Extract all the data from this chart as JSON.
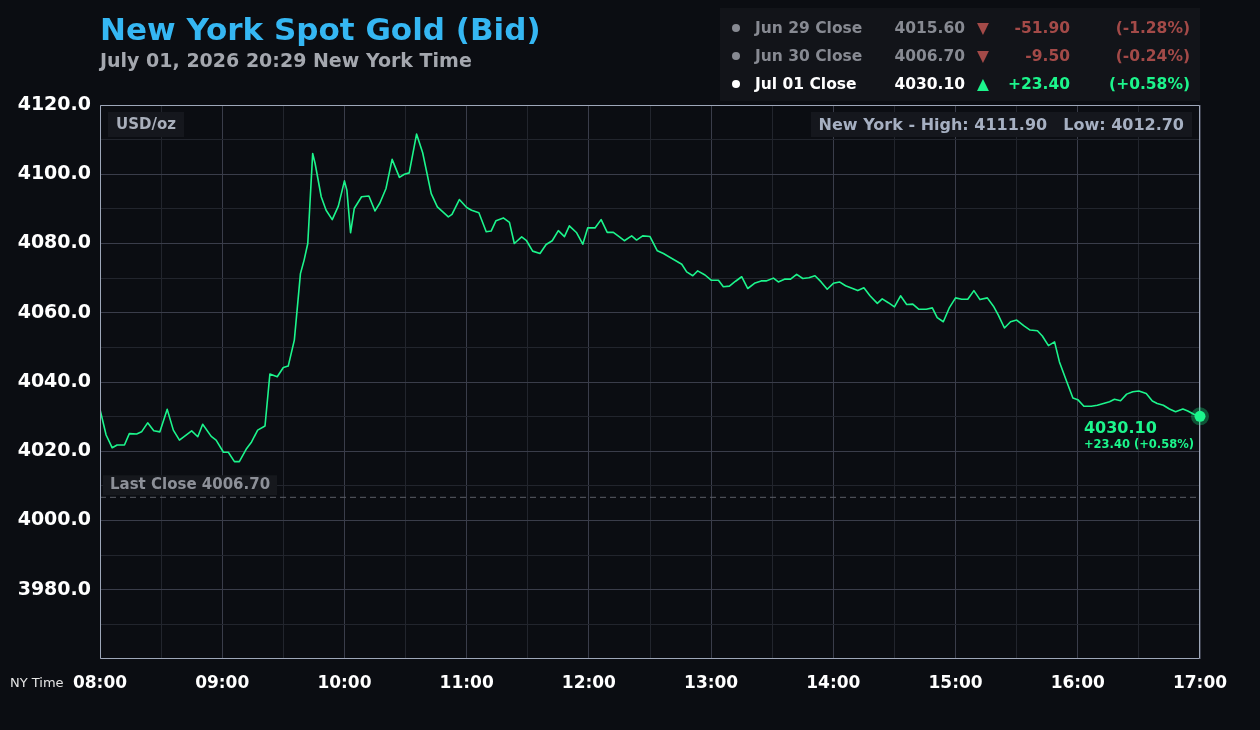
{
  "chart_data": {
    "type": "line",
    "title": "New York Spot Gold (Bid)",
    "subtitle": "July 01, 2026 20:29 New York Time",
    "xlabel": "NY Time",
    "ylabel": "USD/oz",
    "annotations": [
      "Jun 29 Close 4015.60 ▼ -51.90 (-1.28%)",
      "Jun 30 Close 4006.70 ▼ -9.50 (-0.24%)",
      "Jul 01 Close 4030.10 ▲ +23.40 (+0.58%)",
      "New York - High: 4111.90",
      "Low: 4012.70",
      {
        "text": "4030.10",
        "x": 17,
        "y": 4030.1
      },
      {
        "text": "+23.40 (+0.58%)",
        "x": 17,
        "y": 4030.1
      }
    ],
    "x": [
      8.0,
      8.05,
      8.1,
      8.14,
      8.2,
      8.24,
      8.3,
      8.34,
      8.39,
      8.44,
      8.49,
      8.55,
      8.6,
      8.65,
      8.75,
      8.8,
      8.84,
      8.91,
      8.95,
      9.01,
      9.05,
      9.1,
      9.14,
      9.2,
      9.24,
      9.29,
      9.35,
      9.39,
      9.45,
      9.5,
      9.54,
      9.59,
      9.64,
      9.67,
      9.7,
      9.74,
      9.76,
      9.81,
      9.85,
      9.9,
      9.95,
      10.0,
      10.02,
      10.05,
      10.08,
      10.14,
      10.2,
      10.25,
      10.29,
      10.34,
      10.39,
      10.45,
      10.49,
      10.53,
      10.59,
      10.64,
      10.71,
      10.76,
      10.85,
      10.88,
      10.94,
      11.0,
      11.04,
      11.1,
      11.16,
      11.2,
      11.24,
      11.3,
      11.35,
      11.39,
      11.45,
      11.49,
      11.54,
      11.6,
      11.65,
      11.7,
      11.75,
      11.8,
      11.84,
      11.9,
      11.95,
      11.99,
      12.05,
      12.1,
      12.15,
      12.2,
      12.25,
      12.29,
      12.35,
      12.39,
      12.44,
      12.5,
      12.56,
      12.61,
      12.76,
      12.8,
      12.85,
      12.89,
      12.95,
      13.0,
      13.06,
      13.1,
      13.15,
      13.2,
      13.25,
      13.3,
      13.36,
      13.41,
      13.45,
      13.51,
      13.55,
      13.6,
      13.65,
      13.7,
      13.75,
      13.8,
      13.85,
      13.9,
      13.95,
      14.0,
      14.05,
      14.1,
      14.2,
      14.25,
      14.3,
      14.36,
      14.4,
      14.45,
      14.5,
      14.55,
      14.6,
      14.65,
      14.7,
      14.76,
      14.81,
      14.85,
      14.9,
      14.95,
      15.0,
      15.05,
      15.1,
      15.15,
      15.2,
      15.26,
      15.31,
      15.35,
      15.4,
      15.45,
      15.5,
      15.56,
      15.61,
      15.67,
      15.71,
      15.76,
      15.81,
      15.85,
      15.9,
      15.96,
      16.0,
      16.05,
      16.11,
      16.16,
      16.21,
      16.26,
      16.3,
      16.35,
      16.4,
      16.45,
      16.5,
      16.56,
      16.61,
      16.65,
      16.7,
      16.75,
      16.8,
      16.86,
      16.9,
      16.95,
      17.0
    ],
    "values": [
      4032.1,
      4024.7,
      4021.0,
      4021.8,
      4021.8,
      4025.1,
      4025.0,
      4025.6,
      4028.2,
      4025.9,
      4025.6,
      4032.1,
      4026.1,
      4023.2,
      4025.9,
      4024.2,
      4027.8,
      4024.3,
      4023.2,
      4019.7,
      4019.7,
      4017.0,
      4017.0,
      4020.8,
      4022.7,
      4026.1,
      4027.3,
      4042.3,
      4041.5,
      4044.2,
      4044.6,
      4052.1,
      4071.3,
      4075.2,
      4080.0,
      4106.0,
      4103.1,
      4093.5,
      4089.6,
      4086.9,
      4090.8,
      4098.1,
      4095.4,
      4083.1,
      4090.1,
      4093.5,
      4093.7,
      4089.4,
      4091.7,
      4095.9,
      4104.3,
      4099.1,
      4100.0,
      4100.4,
      4111.6,
      4106.2,
      4094.4,
      4090.6,
      4087.7,
      4088.4,
      4092.7,
      4090.4,
      4089.6,
      4088.9,
      4083.4,
      4083.6,
      4086.6,
      4087.4,
      4086.1,
      4080.0,
      4081.9,
      4080.8,
      4077.8,
      4077.1,
      4079.7,
      4080.8,
      4083.7,
      4082.0,
      4085.1,
      4083.1,
      4079.8,
      4084.5,
      4084.5,
      4086.9,
      4083.2,
      4083.2,
      4081.9,
      4080.8,
      4082.2,
      4081.0,
      4082.2,
      4082.0,
      4077.9,
      4077.1,
      4074.0,
      4071.8,
      4070.7,
      4072.1,
      4070.9,
      4069.4,
      4069.4,
      4067.5,
      4067.7,
      4069.1,
      4070.4,
      4067.0,
      4068.6,
      4069.2,
      4069.2,
      4070.0,
      4068.9,
      4069.7,
      4069.7,
      4071.1,
      4069.9,
      4070.1,
      4070.7,
      4068.9,
      4066.8,
      4068.5,
      4068.9,
      4067.8,
      4066.4,
      4067.2,
      4064.9,
      4062.7,
      4064.0,
      4062.9,
      4061.7,
      4064.9,
      4062.4,
      4062.5,
      4061.0,
      4061.0,
      4061.4,
      4058.6,
      4057.4,
      4061.5,
      4064.3,
      4063.9,
      4063.9,
      4066.4,
      4063.8,
      4064.3,
      4061.9,
      4059.3,
      4055.6,
      4057.4,
      4057.9,
      4056.2,
      4055.0,
      4054.8,
      4053.3,
      4050.5,
      4051.6,
      4045.8,
      4041.0,
      4035.4,
      4034.9,
      4033.0,
      4033.0,
      4033.3,
      4033.8,
      4034.3,
      4035.0,
      4034.6,
      4036.5,
      4037.2,
      4037.4,
      4036.7,
      4034.5,
      4033.8,
      4033.3,
      4032.2,
      4031.4,
      4032.2,
      4031.6,
      4030.7,
      4030.1
    ],
    "color": "#1cf58c",
    "xlim": [
      8,
      17
    ],
    "xticks": [
      {
        "value": 8,
        "label": "08:00"
      },
      {
        "value": 8.5,
        "label": null
      },
      {
        "value": 9,
        "label": "09:00"
      },
      {
        "value": 9.5,
        "label": null
      },
      {
        "value": 10,
        "label": "10:00"
      },
      {
        "value": 10.5,
        "label": null
      },
      {
        "value": 11,
        "label": "11:00"
      },
      {
        "value": 11.5,
        "label": null
      },
      {
        "value": 12,
        "label": "12:00"
      },
      {
        "value": 12.5,
        "label": null
      },
      {
        "value": 13,
        "label": "13:00"
      },
      {
        "value": 13.5,
        "label": null
      },
      {
        "value": 14,
        "label": "14:00"
      },
      {
        "value": 14.5,
        "label": null
      },
      {
        "value": 15,
        "label": "15:00"
      },
      {
        "value": 15.5,
        "label": null
      },
      {
        "value": 16,
        "label": "16:00"
      },
      {
        "value": 16.5,
        "label": null
      },
      {
        "value": 17,
        "label": "17:00"
      }
    ],
    "ylim": [
      3960,
      4120
    ],
    "yticks": [
      {
        "value": 3970,
        "label": null
      },
      {
        "value": 3980,
        "label": "3980.0"
      },
      {
        "value": 3990,
        "label": null
      },
      {
        "value": 4000,
        "label": "4000.0"
      },
      {
        "value": 4010,
        "label": null
      },
      {
        "value": 4020,
        "label": "4020.0"
      },
      {
        "value": 4030,
        "label": null
      },
      {
        "value": 4040,
        "label": "4040.0"
      },
      {
        "value": 4050,
        "label": null
      },
      {
        "value": 4060,
        "label": "4060.0"
      },
      {
        "value": 4070,
        "label": null
      },
      {
        "value": 4080,
        "label": "4080.0"
      },
      {
        "value": 4090,
        "label": null
      },
      {
        "value": 4100,
        "label": "4100.0"
      },
      {
        "value": 4110,
        "label": null
      },
      {
        "value": 4120,
        "label": "4120.0"
      }
    ],
    "grid": true,
    "ref_lines": [
      {
        "axis": "y",
        "value": 4006.7,
        "label": "Last Close 4006.70",
        "color": "#5d6068",
        "line_style": "dashed"
      }
    ]
  }
}
